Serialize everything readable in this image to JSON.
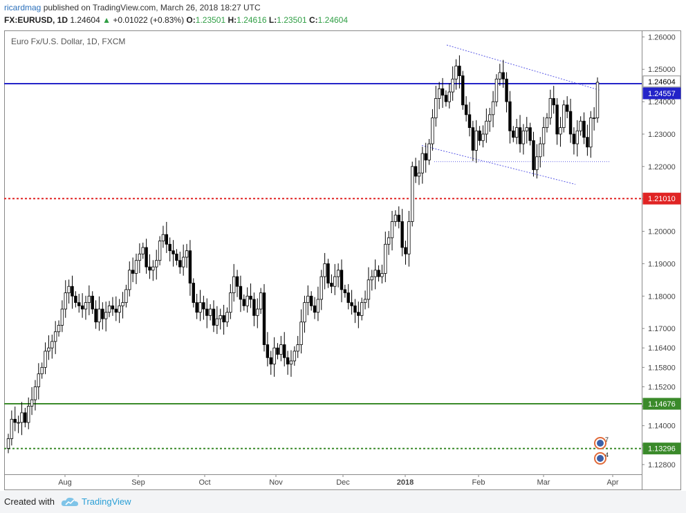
{
  "header": {
    "author": "ricardmag",
    "published": "published on TradingView.com, March 26, 2018 18:27 UTC",
    "symbol": "FX:EURUSD, 1D",
    "last": "1.24604",
    "change": "+0.01022 (+0.83%)",
    "o_label": "O:",
    "o": "1.23501",
    "h_label": "H:",
    "h": "1.24616",
    "l_label": "L:",
    "l": "1.23501",
    "c_label": "C:",
    "c": "1.24604"
  },
  "footer": {
    "created_with": "Created with",
    "brand": "TradingView"
  },
  "colors": {
    "candle": "#000000",
    "blue_line": "#2323c8",
    "red_line": "#e02424",
    "green_line": "#3a8a2a",
    "green_dotted": "#3a8a2a",
    "trend": "#5a5ae6",
    "last_price_bg": "#ffffff",
    "label_blue": "#2323c8",
    "label_red": "#e02424",
    "label_green": "#3a8a2a",
    "brand": "#2a9fd6"
  },
  "chart_data": {
    "type": "candlestick",
    "title": "Euro Fx/U.S. Dollar, 1D, FXCM",
    "x_labels": [
      "Aug",
      "Sep",
      "Oct",
      "Nov",
      "Dec",
      "2018",
      "Feb",
      "Mar",
      "Apr"
    ],
    "y_ticks": [
      "1.26000",
      "1.25000",
      "1.24000",
      "1.23000",
      "1.22000",
      "1.21000",
      "1.20000",
      "1.19000",
      "1.18000",
      "1.17000",
      "1.16400",
      "1.15800",
      "1.15200",
      "1.14600",
      "1.14000",
      "1.13400",
      "1.12800"
    ],
    "y_range": [
      1.125,
      1.262
    ],
    "last_price": "1.24604",
    "horizontal_levels": [
      {
        "name": "blue-level",
        "value": 1.24557,
        "label": "1.24557",
        "style": "solid"
      },
      {
        "name": "red-level",
        "value": 1.2101,
        "label": "1.21010",
        "style": "dotted"
      },
      {
        "name": "green-level",
        "value": 1.14676,
        "label": "1.14676",
        "style": "solid"
      },
      {
        "name": "green-dotted-level",
        "value": 1.13296,
        "label": "1.13296",
        "style": "dotted"
      }
    ],
    "channel": {
      "upper": [
        [
          1.2575,
          1.2435
        ]
      ],
      "lower": [
        [
          1.2265,
          1.2145
        ]
      ],
      "support": 1.2215
    },
    "event_badges": [
      {
        "name": "event-badge-top",
        "count": "7"
      },
      {
        "name": "event-badge-bottom",
        "count": "4"
      }
    ],
    "closes": [
      1.136,
      1.142,
      1.141,
      1.141,
      1.144,
      1.141,
      1.146,
      1.148,
      1.152,
      1.156,
      1.158,
      1.163,
      1.164,
      1.166,
      1.169,
      1.171,
      1.176,
      1.181,
      1.183,
      1.18,
      1.178,
      1.177,
      1.176,
      1.178,
      1.18,
      1.176,
      1.172,
      1.176,
      1.173,
      1.175,
      1.177,
      1.176,
      1.175,
      1.177,
      1.178,
      1.182,
      1.188,
      1.187,
      1.191,
      1.193,
      1.195,
      1.189,
      1.188,
      1.189,
      1.191,
      1.197,
      1.199,
      1.196,
      1.194,
      1.193,
      1.191,
      1.189,
      1.192,
      1.194,
      1.184,
      1.178,
      1.175,
      1.178,
      1.176,
      1.174,
      1.176,
      1.171,
      1.173,
      1.174,
      1.172,
      1.175,
      1.181,
      1.186,
      1.183,
      1.179,
      1.177,
      1.18,
      1.179,
      1.174,
      1.176,
      1.181,
      1.165,
      1.161,
      1.159,
      1.164,
      1.162,
      1.165,
      1.161,
      1.159,
      1.16,
      1.163,
      1.165,
      1.172,
      1.178,
      1.18,
      1.177,
      1.175,
      1.179,
      1.186,
      1.19,
      1.184,
      1.183,
      1.186,
      1.188,
      1.182,
      1.181,
      1.178,
      1.177,
      1.175,
      1.174,
      1.178,
      1.179,
      1.185,
      1.186,
      1.188,
      1.186,
      1.187,
      1.196,
      1.198,
      1.203,
      1.205,
      1.203,
      1.195,
      1.193,
      1.203,
      1.22,
      1.217,
      1.218,
      1.224,
      1.222,
      1.227,
      1.235,
      1.241,
      1.244,
      1.242,
      1.24,
      1.243,
      1.247,
      1.251,
      1.248,
      1.239,
      1.236,
      1.232,
      1.225,
      1.231,
      1.228,
      1.23,
      1.234,
      1.236,
      1.24,
      1.247,
      1.249,
      1.247,
      1.24,
      1.231,
      1.229,
      1.232,
      1.227,
      1.231,
      1.232,
      1.228,
      1.219,
      1.223,
      1.227,
      1.232,
      1.235,
      1.241,
      1.239,
      1.23,
      1.232,
      1.239,
      1.237,
      1.23,
      1.227,
      1.231,
      1.234,
      1.229,
      1.226,
      1.235,
      1.235,
      1.246
    ]
  }
}
